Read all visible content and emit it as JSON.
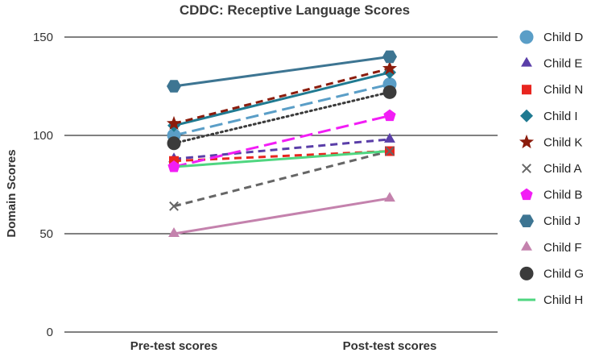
{
  "chart_data": {
    "type": "line",
    "title": "CDDC: Receptive Language Scores",
    "xlabel": "",
    "ylabel": "Domain Scores",
    "categories": [
      "Pre-test scores",
      "Post-test scores"
    ],
    "ylim": [
      0,
      150
    ],
    "yticks": [
      0,
      50,
      100,
      150
    ],
    "gridlines": [
      50,
      100,
      150
    ],
    "legend_position": "right",
    "series": [
      {
        "name": "Child D",
        "values": [
          100,
          126
        ],
        "color": "#5a9ec7",
        "marker": "circle",
        "dash": "long-dash"
      },
      {
        "name": "Child E",
        "values": [
          88,
          98
        ],
        "color": "#5a3ea8",
        "marker": "triangle",
        "dash": "dash"
      },
      {
        "name": "Child N",
        "values": [
          87,
          92
        ],
        "color": "#e8251f",
        "marker": "square",
        "dash": "dash"
      },
      {
        "name": "Child I",
        "values": [
          105,
          132
        ],
        "color": "#1f7a91",
        "marker": "diamond",
        "dash": "solid"
      },
      {
        "name": "Child K",
        "values": [
          106,
          134
        ],
        "color": "#8b1c0c",
        "marker": "star",
        "dash": "dash"
      },
      {
        "name": "Child A",
        "values": [
          64,
          92
        ],
        "color": "#666666",
        "marker": "x",
        "dash": "dash"
      },
      {
        "name": "Child B",
        "values": [
          84,
          110
        ],
        "color": "#f21df5",
        "marker": "pentagon",
        "dash": "long-dash"
      },
      {
        "name": "Child J",
        "values": [
          125,
          140
        ],
        "color": "#3d7592",
        "marker": "hexagon",
        "dash": "solid"
      },
      {
        "name": "Child F",
        "values": [
          50,
          68
        ],
        "color": "#c482ad",
        "marker": "triangle",
        "dash": "solid"
      },
      {
        "name": "Child G",
        "values": [
          96,
          122
        ],
        "color": "#3b3b3b",
        "marker": "circle",
        "dash": "dot"
      },
      {
        "name": "Child H",
        "values": [
          84,
          92
        ],
        "color": "#4fd680",
        "marker": "none",
        "dash": "solid"
      }
    ]
  }
}
